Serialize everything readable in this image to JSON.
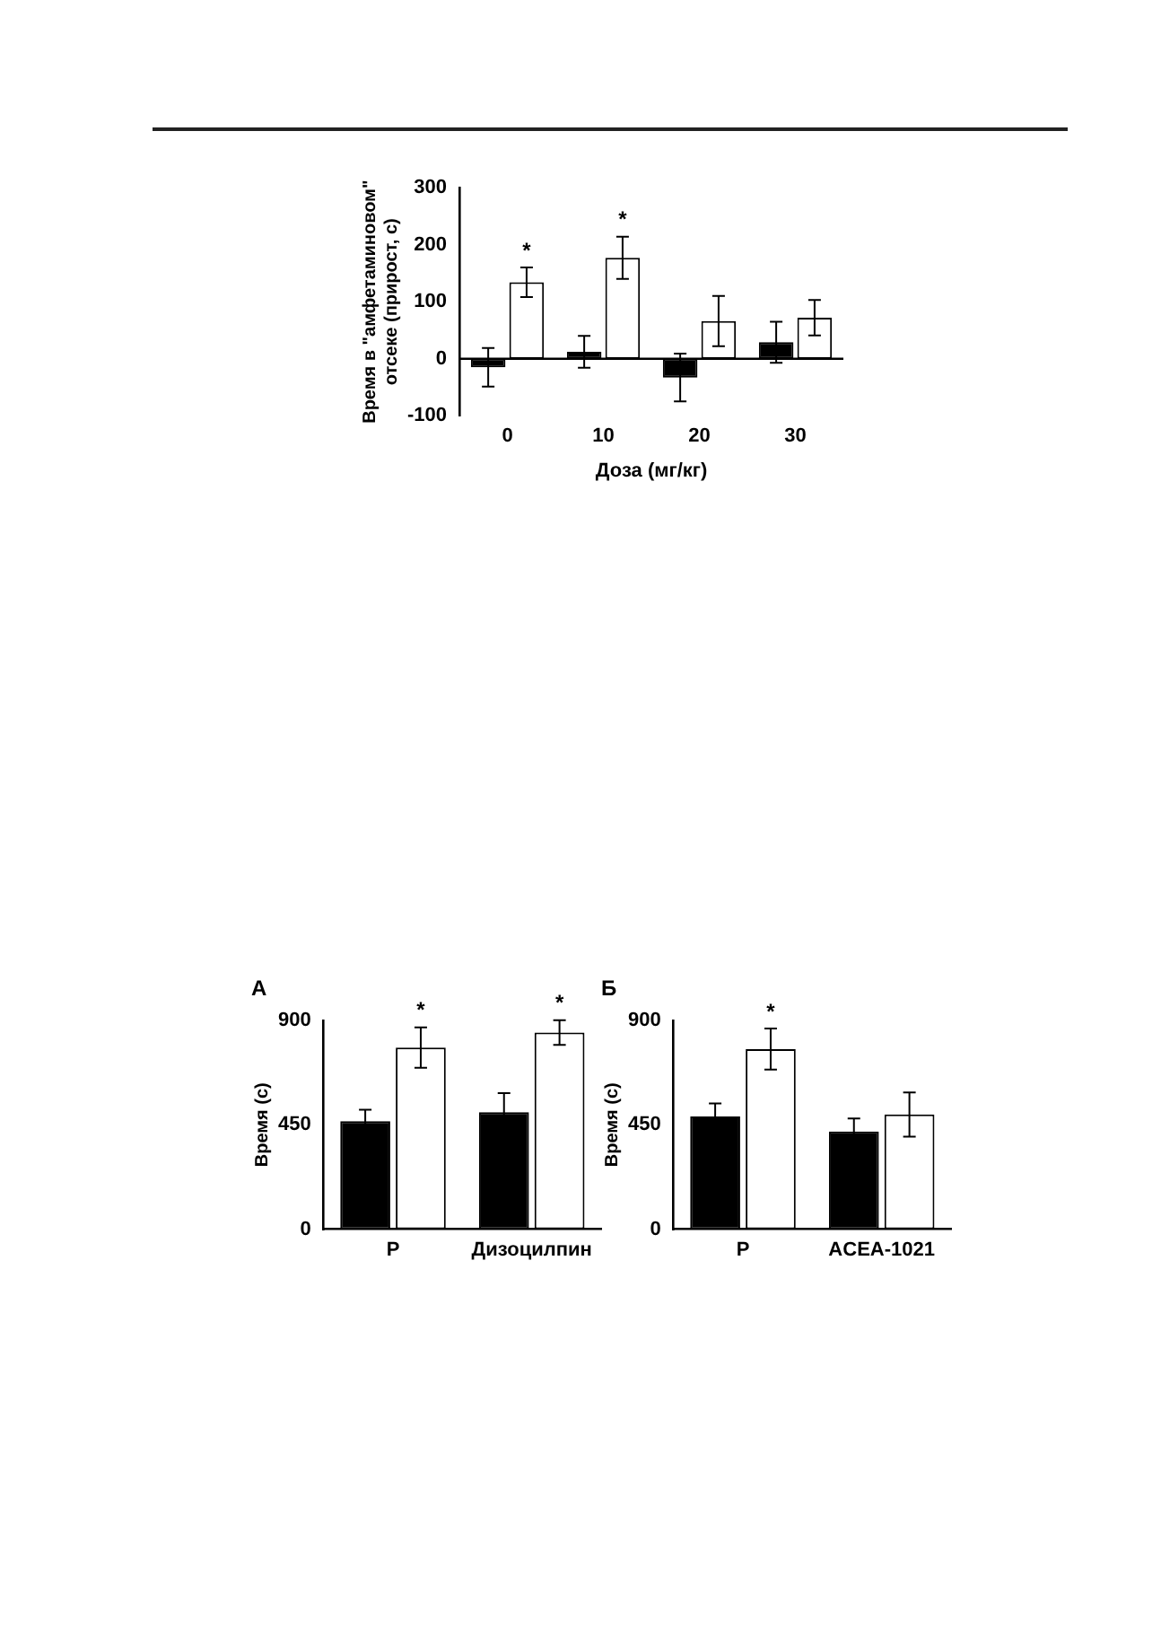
{
  "chart_data": [
    {
      "type": "bar",
      "xlabel": "Доза (мг/кг)",
      "ylabel": "Время в \"амфетаминовом\" отсеке (прирост, с)",
      "categories": [
        "0",
        "10",
        "20",
        "30"
      ],
      "series": [
        {
          "color": "#000000",
          "values": [
            -15,
            12,
            -33,
            29
          ],
          "errors": [
            34,
            28,
            42,
            36
          ]
        },
        {
          "color": "#ffffff",
          "values": [
            134,
            177,
            66,
            72
          ],
          "errors": [
            26,
            37,
            44,
            31
          ]
        }
      ],
      "ylim": [
        -100,
        300
      ],
      "yticks": [
        -100,
        0,
        100,
        200,
        300
      ],
      "grid": false,
      "legend": false,
      "ref_lines": [
        {
          "axis": "y",
          "value": 0,
          "color": "#000000"
        }
      ],
      "annotations": [
        {
          "text": "*",
          "x": "0",
          "y": 134
        },
        {
          "text": "*",
          "x": "10",
          "y": 177
        }
      ]
    },
    {
      "type": "bar",
      "title": "А",
      "ylabel": "Время (с)",
      "categories": [
        "Р",
        "Дизоцилпин"
      ],
      "series": [
        {
          "color": "#000000",
          "values": [
            465,
            504
          ],
          "errors": [
            50,
            82
          ]
        },
        {
          "color": "#ffffff",
          "values": [
            782,
            847
          ],
          "errors": [
            87,
            53
          ]
        }
      ],
      "ylim": [
        0,
        900
      ],
      "yticks": [
        0,
        450,
        900
      ],
      "grid": false,
      "legend": false,
      "annotations": [
        {
          "text": "*",
          "x": "Р",
          "y": 782
        },
        {
          "text": "*",
          "x": "Дизоцилпин",
          "y": 847
        }
      ]
    },
    {
      "type": "bar",
      "title": "Б",
      "ylabel": "Время (с)",
      "categories": [
        "Р",
        "ACEA-1021"
      ],
      "series": [
        {
          "color": "#000000",
          "values": [
            486,
            421
          ],
          "errors": [
            56,
            56
          ]
        },
        {
          "color": "#ffffff",
          "values": [
            776,
            494
          ],
          "errors": [
            88,
            95
          ]
        }
      ],
      "ylim": [
        0,
        900
      ],
      "yticks": [
        0,
        450,
        900
      ],
      "grid": false,
      "legend": false,
      "annotations": [
        {
          "text": "*",
          "x": "Р",
          "y": 776
        }
      ]
    }
  ]
}
